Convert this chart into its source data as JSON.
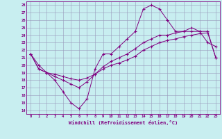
{
  "xlabel": "Windchill (Refroidissement éolien,°C)",
  "bg_color": "#c8eef0",
  "line_color": "#800080",
  "grid_color": "#9999bb",
  "xlim": [
    -0.5,
    23.5
  ],
  "ylim": [
    13.5,
    28.5
  ],
  "xticks": [
    0,
    1,
    2,
    3,
    4,
    5,
    6,
    7,
    8,
    9,
    10,
    11,
    12,
    13,
    14,
    15,
    16,
    17,
    18,
    19,
    20,
    21,
    22,
    23
  ],
  "yticks": [
    14,
    15,
    16,
    17,
    18,
    19,
    20,
    21,
    22,
    23,
    24,
    25,
    26,
    27,
    28
  ],
  "line1_x": [
    0,
    1,
    2,
    3,
    4,
    5,
    6,
    7,
    8,
    9,
    10,
    11,
    12,
    13,
    14,
    15,
    16,
    17,
    18,
    19,
    20,
    21,
    22,
    23
  ],
  "line1_y": [
    21.5,
    20.0,
    19.0,
    18.0,
    16.5,
    15.0,
    14.2,
    15.5,
    19.5,
    21.5,
    21.5,
    22.5,
    23.5,
    24.5,
    27.5,
    28.0,
    27.5,
    26.0,
    24.5,
    24.5,
    25.0,
    24.5,
    23.0,
    22.5
  ],
  "line2_x": [
    0,
    1,
    2,
    3,
    4,
    5,
    6,
    7,
    8,
    9,
    10,
    11,
    12,
    13,
    14,
    15,
    16,
    17,
    18,
    19,
    20,
    21,
    22,
    23
  ],
  "line2_y": [
    21.5,
    19.5,
    19.0,
    18.5,
    18.0,
    17.5,
    17.0,
    17.8,
    18.8,
    19.8,
    20.5,
    21.0,
    21.5,
    22.2,
    23.0,
    23.5,
    24.0,
    24.0,
    24.3,
    24.5,
    24.5,
    24.5,
    24.5,
    21.0
  ],
  "line3_x": [
    0,
    1,
    2,
    3,
    4,
    5,
    6,
    7,
    8,
    9,
    10,
    11,
    12,
    13,
    14,
    15,
    16,
    17,
    18,
    19,
    20,
    21,
    22,
    23
  ],
  "line3_y": [
    21.5,
    19.5,
    19.0,
    18.8,
    18.5,
    18.2,
    18.0,
    18.3,
    18.8,
    19.5,
    20.0,
    20.3,
    20.7,
    21.2,
    22.0,
    22.5,
    23.0,
    23.3,
    23.5,
    23.8,
    24.0,
    24.2,
    24.3,
    21.0
  ]
}
